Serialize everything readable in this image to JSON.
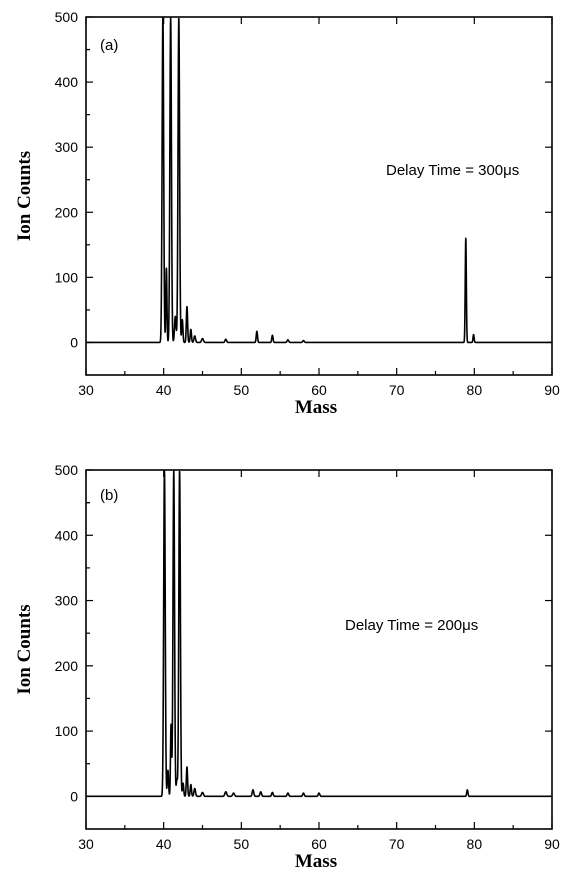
{
  "chart_data": [
    {
      "type": "line",
      "panel_label": "(a)",
      "annotation": "Delay Time = 300μs",
      "xlabel": "Mass",
      "ylabel": "Ion Counts",
      "xlim": [
        30,
        90
      ],
      "ylim": [
        -50,
        500
      ],
      "xticks": [
        30,
        40,
        50,
        60,
        70,
        80,
        90
      ],
      "yticks": [
        0,
        100,
        200,
        300,
        400,
        500
      ],
      "baseline": 0,
      "peaks": [
        {
          "x": 39.9,
          "y": 500,
          "w": 0.1
        },
        {
          "x": 40.35,
          "y": 115,
          "w": 0.07
        },
        {
          "x": 40.9,
          "y": 500,
          "w": 0.1
        },
        {
          "x": 41.5,
          "y": 40,
          "w": 0.1
        },
        {
          "x": 41.95,
          "y": 500,
          "w": 0.1
        },
        {
          "x": 42.4,
          "y": 35,
          "w": 0.08
        },
        {
          "x": 43.0,
          "y": 55,
          "w": 0.08
        },
        {
          "x": 43.5,
          "y": 20,
          "w": 0.08
        },
        {
          "x": 44.0,
          "y": 10,
          "w": 0.1
        },
        {
          "x": 45.0,
          "y": 6,
          "w": 0.12
        },
        {
          "x": 48.0,
          "y": 5,
          "w": 0.1
        },
        {
          "x": 52.0,
          "y": 17,
          "w": 0.08
        },
        {
          "x": 54.0,
          "y": 11,
          "w": 0.08
        },
        {
          "x": 56.0,
          "y": 4,
          "w": 0.1
        },
        {
          "x": 58.0,
          "y": 3,
          "w": 0.1
        },
        {
          "x": 78.9,
          "y": 160,
          "w": 0.07
        },
        {
          "x": 79.9,
          "y": 12,
          "w": 0.07
        }
      ]
    },
    {
      "type": "line",
      "panel_label": "(b)",
      "annotation": "Delay Time = 200μs",
      "xlabel": "Mass",
      "ylabel": "Ion Counts",
      "xlim": [
        30,
        90
      ],
      "ylim": [
        -50,
        500
      ],
      "xticks": [
        30,
        40,
        50,
        60,
        70,
        80,
        90
      ],
      "yticks": [
        0,
        100,
        200,
        300,
        400,
        500
      ],
      "baseline": 0,
      "peaks": [
        {
          "x": 40.1,
          "y": 500,
          "w": 0.1
        },
        {
          "x": 40.55,
          "y": 40,
          "w": 0.08
        },
        {
          "x": 40.95,
          "y": 110,
          "w": 0.07
        },
        {
          "x": 41.3,
          "y": 500,
          "w": 0.1
        },
        {
          "x": 41.7,
          "y": 25,
          "w": 0.08
        },
        {
          "x": 42.05,
          "y": 500,
          "w": 0.1
        },
        {
          "x": 42.5,
          "y": 20,
          "w": 0.08
        },
        {
          "x": 43.0,
          "y": 45,
          "w": 0.08
        },
        {
          "x": 43.5,
          "y": 18,
          "w": 0.08
        },
        {
          "x": 44.0,
          "y": 12,
          "w": 0.1
        },
        {
          "x": 45.0,
          "y": 6,
          "w": 0.12
        },
        {
          "x": 48.0,
          "y": 7,
          "w": 0.12
        },
        {
          "x": 49.0,
          "y": 5,
          "w": 0.12
        },
        {
          "x": 51.5,
          "y": 10,
          "w": 0.1
        },
        {
          "x": 52.5,
          "y": 7,
          "w": 0.1
        },
        {
          "x": 54.0,
          "y": 6,
          "w": 0.1
        },
        {
          "x": 56.0,
          "y": 5,
          "w": 0.1
        },
        {
          "x": 58.0,
          "y": 5,
          "w": 0.1
        },
        {
          "x": 60.0,
          "y": 5,
          "w": 0.1
        },
        {
          "x": 79.1,
          "y": 10,
          "w": 0.08
        }
      ]
    }
  ]
}
